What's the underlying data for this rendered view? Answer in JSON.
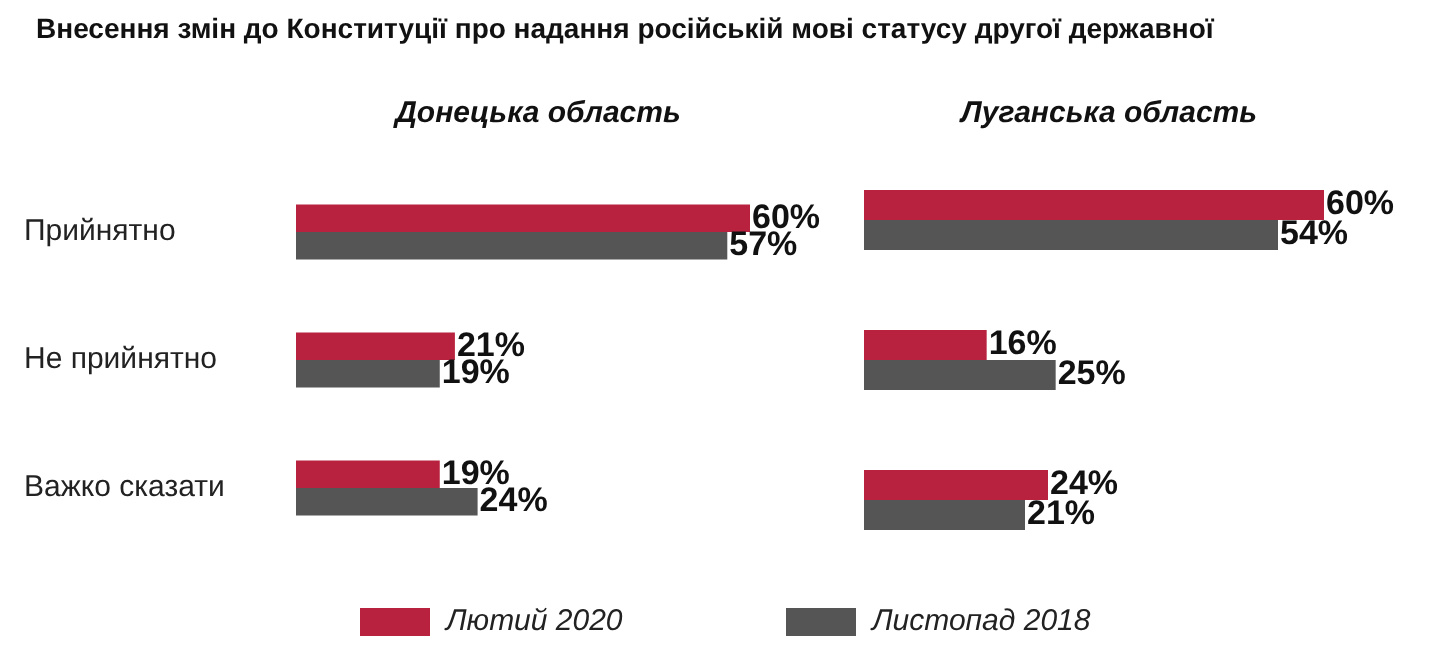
{
  "chart_data": [
    {
      "type": "bar",
      "orientation": "horizontal",
      "title": "Внесення змін до Конституції про надання російській мові статусу другої державної",
      "subtitle": "Донецька область",
      "categories": [
        "Прийнятно",
        "Не прийнятно",
        "Важко сказати"
      ],
      "series": [
        {
          "name": "Лютий 2020",
          "color": "#b8223f",
          "values": [
            60,
            21,
            19
          ],
          "value_labels": [
            "60%",
            "21%",
            "19%"
          ]
        },
        {
          "name": "Листопад 2018",
          "color": "#555555",
          "values": [
            57,
            19,
            24
          ],
          "value_labels": [
            "57%",
            "19%",
            "24%"
          ]
        }
      ],
      "tick_labels": "y",
      "legend": "bottom"
    },
    {
      "type": "bar",
      "orientation": "horizontal",
      "subtitle": "Луганська область",
      "categories": [
        null,
        null,
        null
      ],
      "series": [
        {
          "color": "#b8223f",
          "values": [
            60,
            16,
            24
          ],
          "value_labels": [
            "60%",
            "16%",
            "24%"
          ]
        },
        {
          "color": "#555555",
          "values": [
            54,
            25,
            21
          ],
          "value_labels": [
            "54%",
            "25%",
            "21%"
          ]
        }
      ],
      "tick_labels": false
    }
  ]
}
